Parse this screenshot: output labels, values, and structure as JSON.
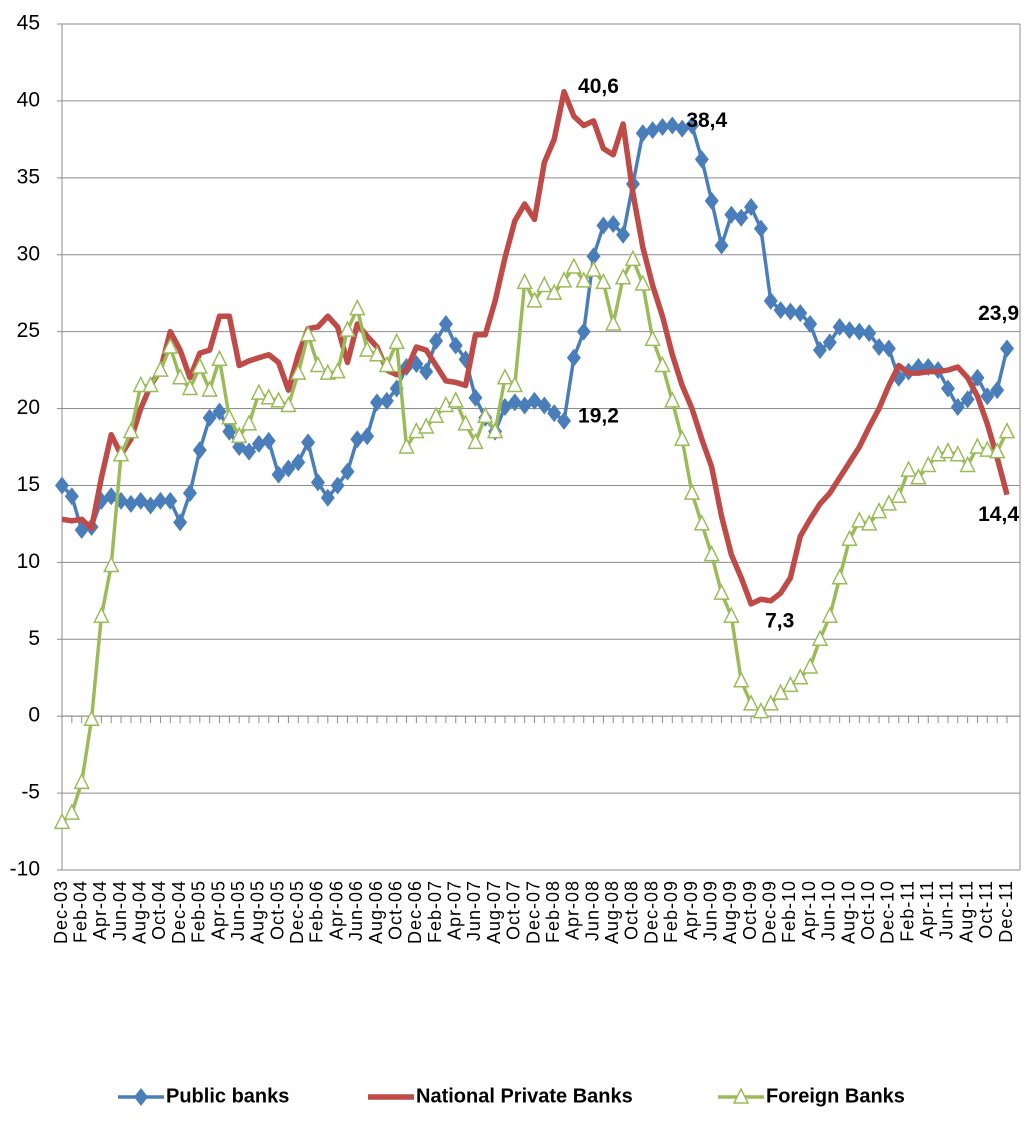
{
  "chart_data": {
    "type": "line",
    "categories": [
      "Dec-03",
      null,
      "Feb-04",
      null,
      "Apr-04",
      null,
      "Jun-04",
      null,
      "Aug-04",
      null,
      "Oct-04",
      null,
      "Dec-04",
      null,
      "Feb-05",
      null,
      "Apr-05",
      null,
      "Jun-05",
      null,
      "Aug-05",
      null,
      "Oct-05",
      null,
      "Dec-05",
      null,
      "Feb-06",
      null,
      "Apr-06",
      null,
      "Jun-06",
      null,
      "Aug-06",
      null,
      "Oct-06",
      null,
      "Dec-06",
      null,
      "Feb-07",
      null,
      "Apr-07",
      null,
      "Jun-07",
      null,
      "Aug-07",
      null,
      "Oct-07",
      null,
      "Dec-07",
      null,
      "Feb-08",
      null,
      "Apr-08",
      null,
      "Jun-08",
      null,
      "Aug-08",
      null,
      "Oct-08",
      null,
      "Dec-08",
      null,
      "Feb-09",
      null,
      "Apr-09",
      null,
      "Jun-09",
      null,
      "Aug-09",
      null,
      "Oct-09",
      null,
      "Dec-09",
      null,
      "Feb-10",
      null,
      "Apr-10",
      null,
      "Jun-10",
      null,
      "Aug-10",
      null,
      "Oct-10",
      null,
      "Dec-10",
      null,
      "Feb-11",
      null,
      "Apr-11",
      null,
      "Jun-11",
      null,
      "Aug-11",
      null,
      "Oct-11",
      null,
      "Dec-11"
    ],
    "series": [
      {
        "name": "Public banks",
        "color": "#4a7ebb",
        "marker": "diamond",
        "values": [
          15,
          14.3,
          12.1,
          12.3,
          14,
          14.3,
          14,
          13.8,
          14,
          13.7,
          14,
          14,
          12.6,
          14.5,
          17.3,
          19.4,
          19.8,
          18.5,
          17.5,
          17.2,
          17.7,
          17.9,
          15.7,
          16.1,
          16.5,
          17.8,
          15.2,
          14.2,
          15,
          15.9,
          18,
          18.2,
          20.4,
          20.5,
          21.3,
          22.7,
          22.9,
          22.4,
          24.4,
          25.5,
          24.1,
          23.2,
          20.7,
          19.4,
          18.5,
          20.1,
          20.4,
          20.2,
          20.5,
          20.2,
          19.7,
          19.2,
          23.3,
          25,
          29.9,
          31.9,
          32,
          31.3,
          34.6,
          37.9,
          38.1,
          38.3,
          38.4,
          38.2,
          38.4,
          36.2,
          33.5,
          30.6,
          32.6,
          32.4,
          33.1,
          31.7,
          27,
          26.4,
          26.3,
          26.2,
          25.5,
          23.8,
          24.3,
          25.3,
          25.1,
          25,
          24.9,
          24,
          23.9,
          22,
          22.4,
          22.7,
          22.7,
          22.5,
          21.3,
          20.1,
          20.6,
          22,
          20.8,
          21.2,
          23.9
        ],
        "value_labels": [
          null,
          null,
          null,
          null,
          null,
          null,
          null,
          null,
          null,
          null,
          null,
          null,
          null,
          null,
          null,
          null,
          null,
          null,
          null,
          null,
          null,
          null,
          null,
          null,
          null,
          null,
          null,
          null,
          null,
          null,
          null,
          null,
          null,
          null,
          null,
          null,
          null,
          null,
          null,
          null,
          null,
          null,
          null,
          null,
          null,
          null,
          null,
          null,
          null,
          null,
          null,
          "19,2",
          null,
          null,
          null,
          null,
          null,
          null,
          null,
          null,
          null,
          null,
          "38,4",
          null,
          null,
          null,
          null,
          null,
          null,
          null,
          null,
          null,
          null,
          null,
          null,
          null,
          null,
          null,
          null,
          null,
          null,
          null,
          null,
          null,
          null,
          null,
          null,
          null,
          null,
          null,
          null,
          null,
          null,
          null,
          null,
          null,
          "23,9"
        ]
      },
      {
        "name": "National Private Banks",
        "color": "#be4b48",
        "marker": "none",
        "values": [
          12.8,
          12.7,
          12.8,
          12.2,
          15.5,
          18.3,
          17,
          18,
          20,
          21.5,
          22.5,
          25,
          23.8,
          22,
          23.6,
          23.8,
          26,
          26,
          22.8,
          23.1,
          23.3,
          23.5,
          23,
          21.2,
          23.5,
          25.2,
          25.3,
          26,
          25.3,
          23,
          25.5,
          24.7,
          24,
          22.5,
          22.2,
          22.5,
          24,
          23.8,
          22.8,
          21.8,
          21.7,
          21.5,
          24.8,
          24.8,
          27,
          29.8,
          32.2,
          33.3,
          32.3,
          36,
          37.5,
          40.6,
          39,
          38.4,
          38.7,
          36.9,
          36.5,
          38.5,
          34,
          30.5,
          28,
          26,
          23.5,
          21.5,
          20,
          18,
          16.2,
          13,
          10.5,
          9,
          7.3,
          7.6,
          7.5,
          8,
          9,
          11.7,
          12.8,
          13.8,
          14.5,
          15.5,
          16.5,
          17.5,
          18.8,
          20,
          21.5,
          22.8,
          22.3,
          22.3,
          22.4,
          22.4,
          22.5,
          22.7,
          22,
          20.8,
          19,
          16.8,
          14.4
        ],
        "value_labels": [
          null,
          null,
          null,
          null,
          null,
          null,
          null,
          null,
          null,
          null,
          null,
          null,
          null,
          null,
          null,
          null,
          null,
          null,
          null,
          null,
          null,
          null,
          null,
          null,
          null,
          null,
          null,
          null,
          null,
          null,
          null,
          null,
          null,
          null,
          null,
          null,
          null,
          null,
          null,
          null,
          null,
          null,
          null,
          null,
          null,
          null,
          null,
          null,
          null,
          null,
          null,
          "40,6",
          null,
          null,
          null,
          null,
          null,
          null,
          null,
          null,
          null,
          null,
          null,
          null,
          null,
          null,
          null,
          null,
          null,
          null,
          "7,3",
          null,
          null,
          null,
          null,
          null,
          null,
          null,
          null,
          null,
          null,
          null,
          null,
          null,
          null,
          null,
          null,
          null,
          null,
          null,
          null,
          null,
          null,
          null,
          null,
          null,
          "14,4"
        ]
      },
      {
        "name": "Foreign Banks",
        "color": "#9bbb59",
        "marker": "triangle",
        "values": [
          -6.9,
          -6.3,
          -4.3,
          -0.2,
          6.5,
          9.8,
          17,
          18.5,
          21.5,
          21.5,
          22.5,
          24,
          22,
          21.3,
          22.7,
          21.2,
          23.2,
          19.4,
          18.2,
          19,
          21,
          20.7,
          20.5,
          20.2,
          22.3,
          24.8,
          22.8,
          22.3,
          22.4,
          25.1,
          26.5,
          23.8,
          23.5,
          22.8,
          24.3,
          17.5,
          18.5,
          18.8,
          19.5,
          20.2,
          20.5,
          19,
          17.8,
          19.5,
          18.5,
          22,
          21.5,
          28.2,
          27,
          28,
          27.5,
          28.3,
          29.2,
          28.3,
          29,
          28.2,
          25.5,
          28.5,
          29.7,
          28.1,
          24.5,
          22.8,
          20.5,
          18,
          14.5,
          12.5,
          10.5,
          8,
          6.5,
          2.3,
          0.8,
          0.3,
          0.8,
          1.5,
          2,
          2.5,
          3.2,
          5,
          6.5,
          9,
          11.5,
          12.7,
          12.5,
          13.3,
          13.8,
          14.3,
          16,
          15.5,
          16.3,
          17,
          17.2,
          17,
          16.3,
          17.5,
          17.3,
          17.2,
          18.5
        ]
      }
    ],
    "ylim": [
      -10,
      45
    ],
    "yticks": [
      -10,
      -5,
      0,
      5,
      10,
      15,
      20,
      25,
      30,
      35,
      40,
      45
    ],
    "grid": true,
    "legend": "bottom"
  }
}
